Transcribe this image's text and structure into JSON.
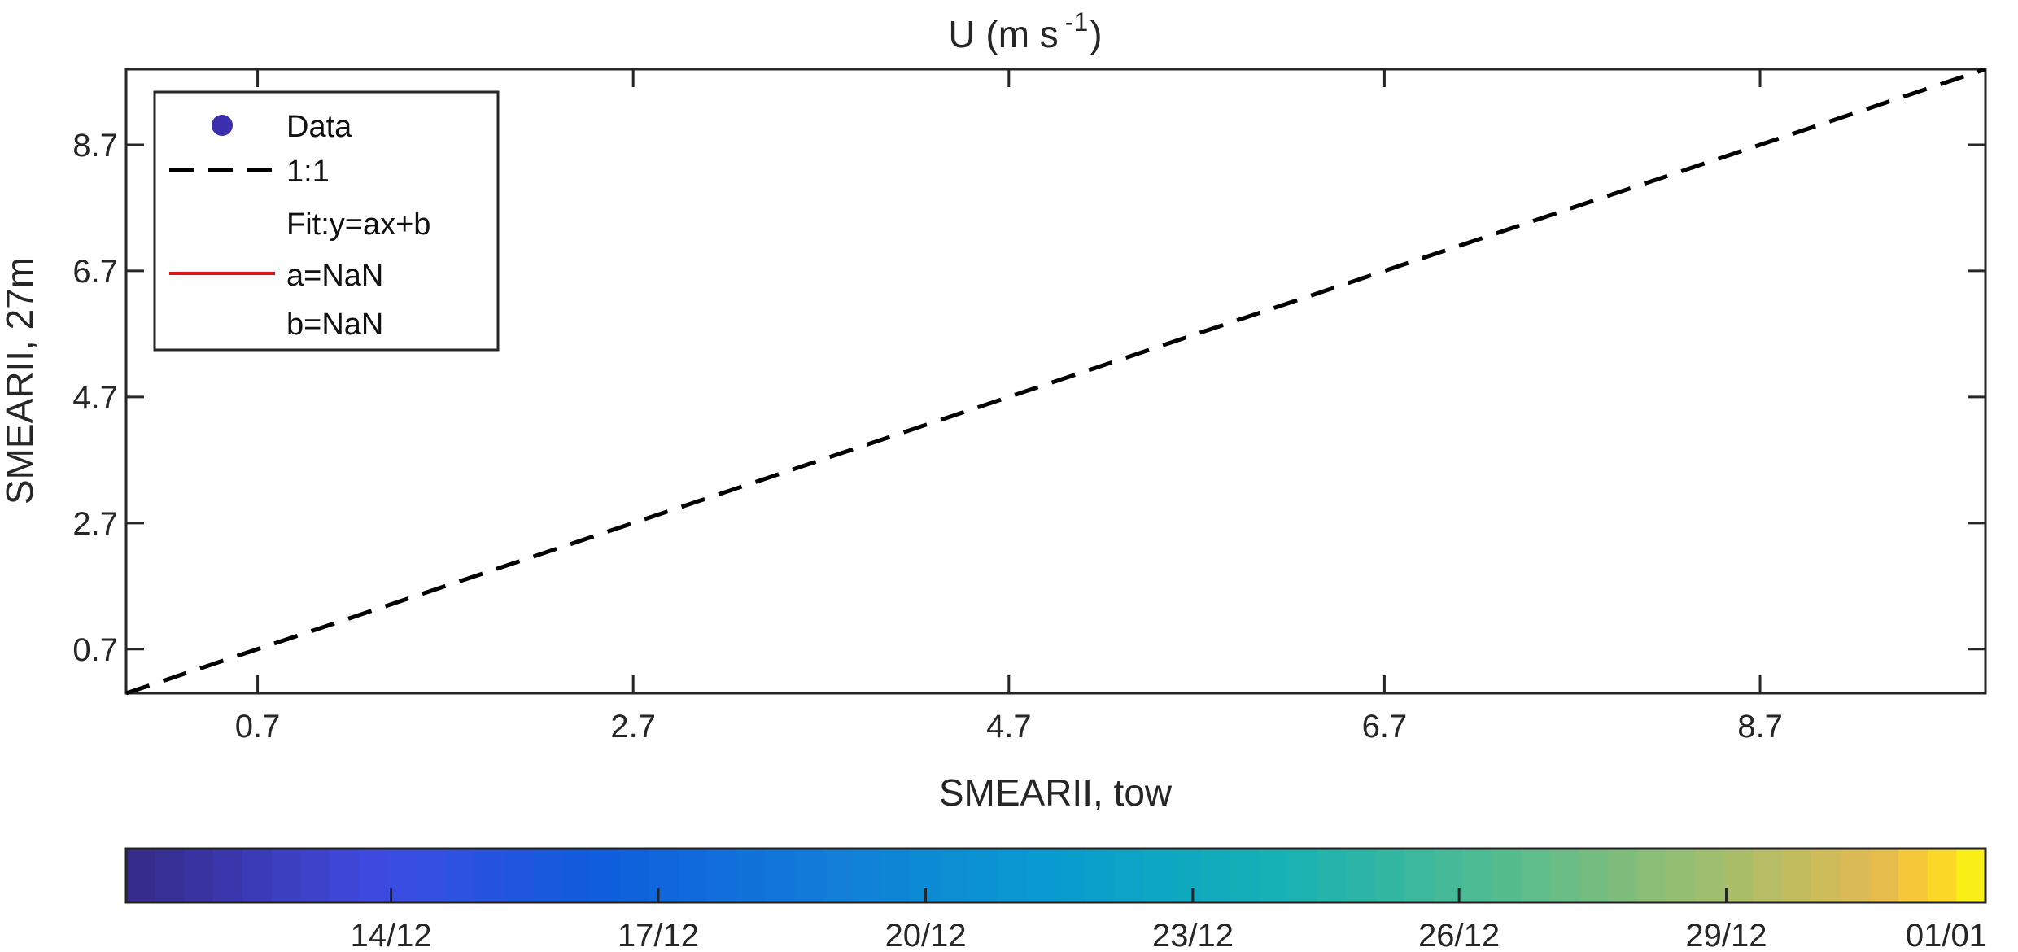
{
  "chart_data": {
    "type": "scatter",
    "title": "U (m s",
    "title_superscript": "-1",
    "title_suffix": ")",
    "xlabel": "SMEARII, tow",
    "ylabel": "SMEARII, 27m",
    "xlim": [
      0.0,
      9.9
    ],
    "ylim": [
      0.0,
      9.9
    ],
    "xticks": [
      0.7,
      2.7,
      4.7,
      6.7,
      8.7
    ],
    "xtick_labels": [
      "0.7",
      "2.7",
      "4.7",
      "6.7",
      "8.7"
    ],
    "yticks": [
      0.7,
      2.7,
      4.7,
      6.7,
      8.7
    ],
    "ytick_labels": [
      "0.7",
      "2.7",
      "4.7",
      "6.7",
      "8.7"
    ],
    "grid": false,
    "legend_position": "top-left",
    "legend": [
      {
        "label": "Data",
        "marker": "circle",
        "color": "#3b2fae"
      },
      {
        "label": "1:1",
        "line": "dashed",
        "color": "#000000"
      },
      {
        "label": "Fit:y=ax+b",
        "line": "none"
      },
      {
        "label": "a=NaN",
        "line": "solid",
        "color": "#e5141a"
      },
      {
        "label": "b=NaN",
        "line": "none"
      }
    ],
    "series": [
      {
        "name": "1:1",
        "x": [
          0.0,
          9.9
        ],
        "y": [
          0.0,
          9.9
        ],
        "color": "#000000",
        "style": "dashed"
      }
    ],
    "colorbar": {
      "orientation": "horizontal",
      "colormap": "parula",
      "tick_labels": [
        "14/12",
        "17/12",
        "20/12",
        "23/12",
        "26/12",
        "29/12",
        "01/01"
      ],
      "tick_fractions": [
        0.1425,
        0.2862,
        0.43,
        0.5737,
        0.7169,
        0.8606,
        1.0
      ],
      "segments": 64
    }
  }
}
